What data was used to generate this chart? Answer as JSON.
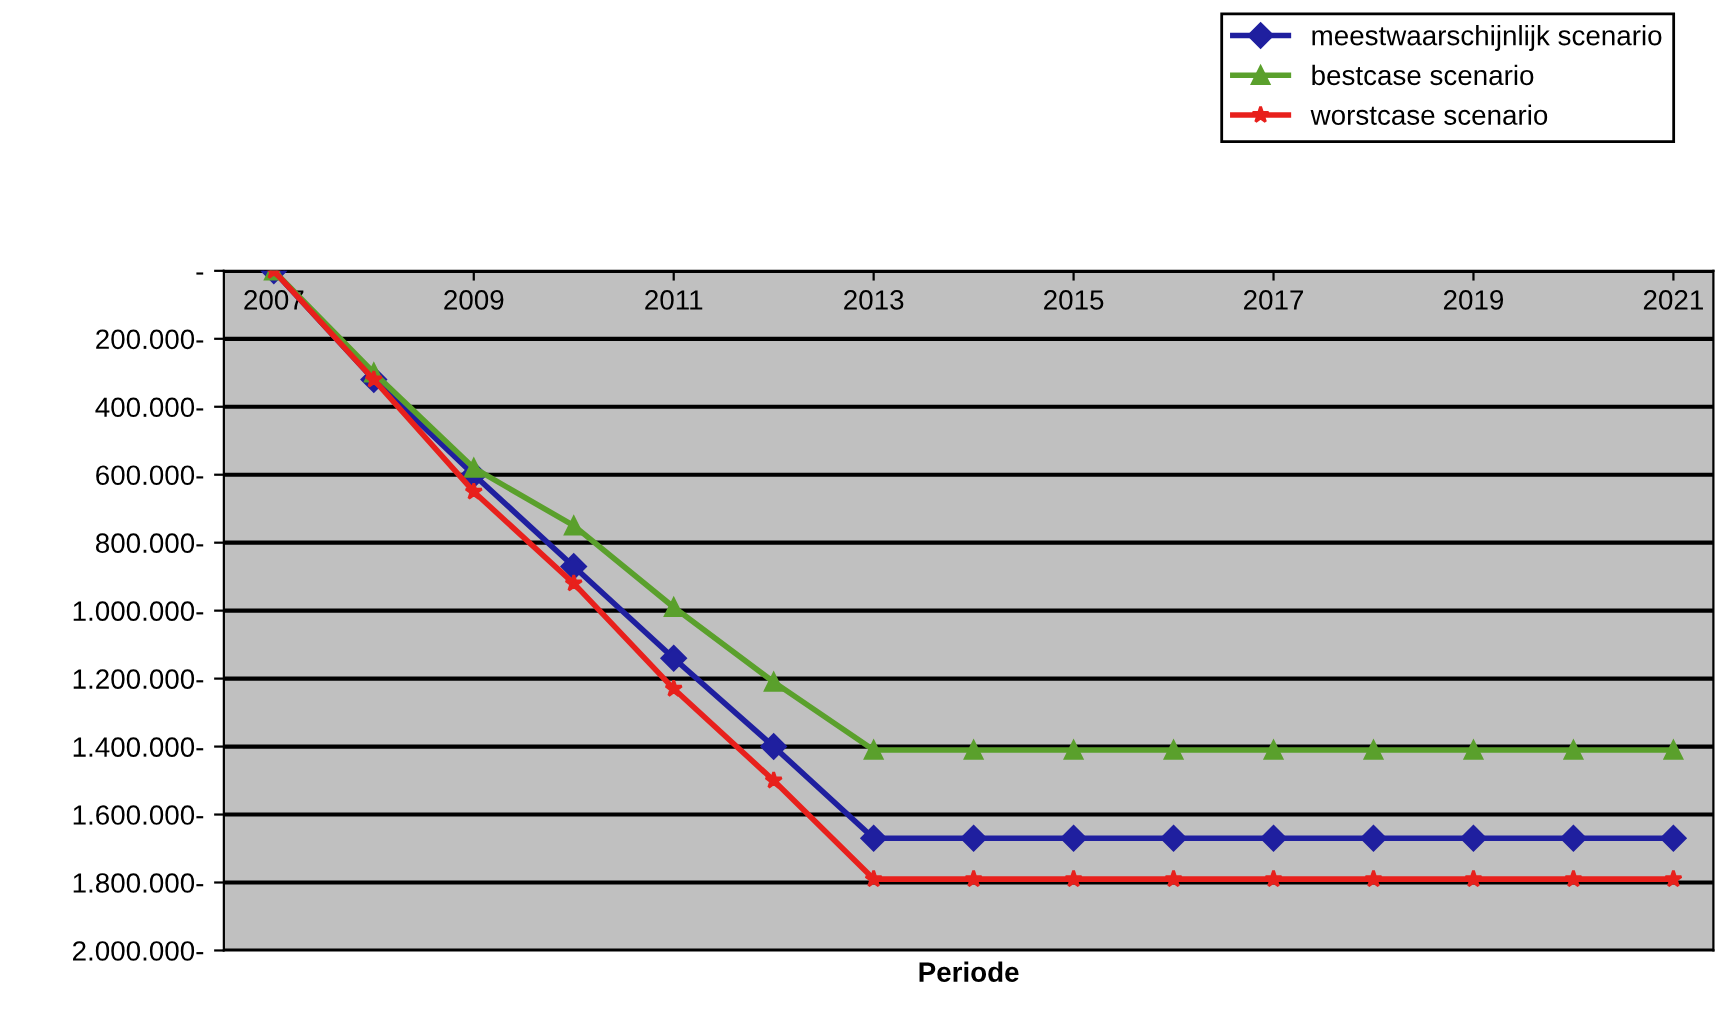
{
  "chart_data": {
    "type": "line",
    "xlabel": "Periode",
    "x": [
      2007,
      2008,
      2009,
      2010,
      2011,
      2012,
      2013,
      2014,
      2015,
      2016,
      2017,
      2018,
      2019,
      2020,
      2021
    ],
    "series": [
      {
        "name": "meestwaarschijnlijk scenario",
        "color": "#1f1f9f",
        "marker": "diamond",
        "values": [
          0,
          -320000,
          -600000,
          -870000,
          -1140000,
          -1400000,
          -1670000,
          -1670000,
          -1670000,
          -1670000,
          -1670000,
          -1670000,
          -1670000,
          -1670000,
          -1670000
        ]
      },
      {
        "name": "bestcase scenario",
        "color": "#5aa02c",
        "marker": "triangle",
        "values": [
          0,
          -300000,
          -580000,
          -750000,
          -990000,
          -1210000,
          -1410000,
          -1410000,
          -1410000,
          -1410000,
          -1410000,
          -1410000,
          -1410000,
          -1410000,
          -1410000
        ]
      },
      {
        "name": "worstcase scenario",
        "color": "#e8201c",
        "marker": "star",
        "values": [
          0,
          -320000,
          -650000,
          -920000,
          -1230000,
          -1500000,
          -1790000,
          -1790000,
          -1790000,
          -1790000,
          -1790000,
          -1790000,
          -1790000,
          -1790000,
          -1790000
        ]
      }
    ],
    "xlim": [
      2006.5,
      2021.4
    ],
    "xticks": [
      2007,
      2009,
      2011,
      2013,
      2015,
      2017,
      2019,
      2021
    ],
    "ylim": [
      -2000000,
      0
    ],
    "yticks": [
      {
        "value": 0,
        "label": "-"
      },
      {
        "value": -200000,
        "label": "200.000-"
      },
      {
        "value": -400000,
        "label": "400.000-"
      },
      {
        "value": -600000,
        "label": "600.000-"
      },
      {
        "value": -800000,
        "label": "800.000-"
      },
      {
        "value": -1000000,
        "label": "1.000.000-"
      },
      {
        "value": -1200000,
        "label": "1.200.000-"
      },
      {
        "value": -1400000,
        "label": "1.400.000-"
      },
      {
        "value": -1600000,
        "label": "1.600.000-"
      },
      {
        "value": -1800000,
        "label": "1.800.000-"
      },
      {
        "value": -2000000,
        "label": "2.000.000-"
      }
    ],
    "grid": "y",
    "legend": "top right",
    "line_style": "solid"
  }
}
